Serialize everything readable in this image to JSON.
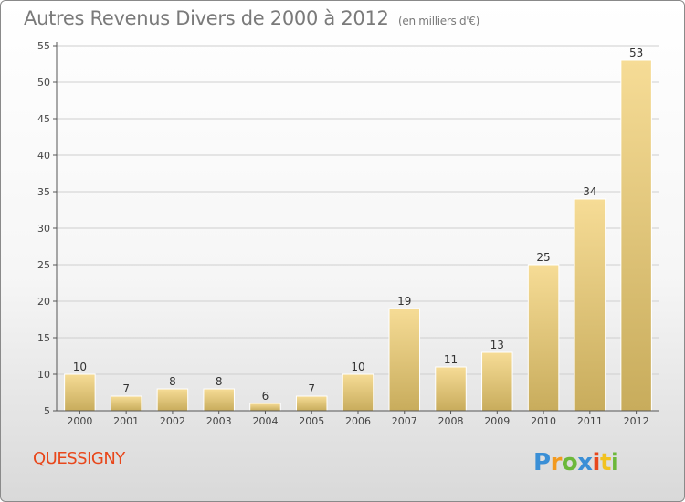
{
  "header": {
    "title": "Autres Revenus Divers de 2000 à 2012",
    "subtitle": "(en milliers d'€)"
  },
  "footer": {
    "town": "QUESSIGNY",
    "brand": "Proxiti"
  },
  "colors": {
    "bar_light": "#f6dc96",
    "bar_dark": "#c8ac5c",
    "axis": "#555555",
    "grid": "#cfcfcf",
    "town": "#e8471b",
    "title": "#7a7a7a"
  },
  "chart_data": {
    "type": "bar",
    "title": "Autres Revenus Divers de 2000 à 2012",
    "xlabel": "",
    "ylabel": "",
    "categories": [
      "2000",
      "2001",
      "2002",
      "2003",
      "2004",
      "2005",
      "2006",
      "2007",
      "2008",
      "2009",
      "2010",
      "2011",
      "2012"
    ],
    "values": [
      10,
      7,
      8,
      8,
      6,
      7,
      10,
      19,
      11,
      13,
      25,
      34,
      53
    ],
    "ylim": [
      5,
      55
    ],
    "yticks": [
      5,
      10,
      15,
      20,
      25,
      30,
      35,
      40,
      45,
      50,
      55
    ],
    "grid": true,
    "data_labels": true
  }
}
